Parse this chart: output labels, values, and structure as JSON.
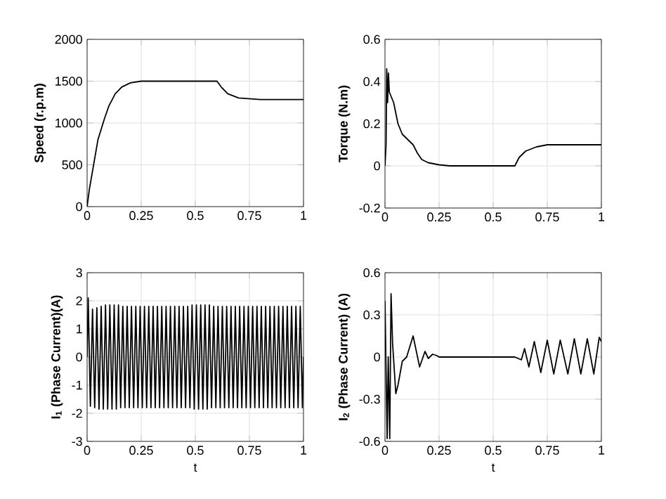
{
  "chart_data": [
    {
      "type": "line",
      "ylabel": "Speed (r.p.m)",
      "color": "#000000",
      "grid": true,
      "xlim": [
        0,
        1
      ],
      "xticks": [
        0,
        0.25,
        0.5,
        0.75,
        1
      ],
      "ylim": [
        0,
        2000
      ],
      "yticks": [
        0,
        500,
        1000,
        1500,
        2000
      ],
      "x": [
        0,
        0.01,
        0.03,
        0.05,
        0.08,
        0.1,
        0.13,
        0.16,
        0.2,
        0.25,
        0.6,
        0.62,
        0.65,
        0.7,
        0.75,
        0.8,
        1
      ],
      "values": [
        0,
        200,
        500,
        800,
        1050,
        1200,
        1350,
        1430,
        1480,
        1500,
        1500,
        1430,
        1350,
        1300,
        1290,
        1280,
        1280
      ]
    },
    {
      "type": "line",
      "ylabel": "Torque (N.m)",
      "color": "#000000",
      "grid": true,
      "xlim": [
        0,
        1
      ],
      "xticks": [
        0,
        0.25,
        0.5,
        0.75,
        1
      ],
      "ylim": [
        -0.2,
        0.6
      ],
      "yticks": [
        -0.2,
        0,
        0.2,
        0.4,
        0.6
      ],
      "x": [
        0,
        0.005,
        0.008,
        0.012,
        0.016,
        0.02,
        0.04,
        0.06,
        0.08,
        0.1,
        0.13,
        0.15,
        0.17,
        0.2,
        0.25,
        0.3,
        0.6,
        0.62,
        0.65,
        0.7,
        0.75,
        0.85,
        1
      ],
      "values": [
        0,
        0.1,
        0.46,
        0.3,
        0.44,
        0.35,
        0.3,
        0.2,
        0.15,
        0.13,
        0.1,
        0.06,
        0.03,
        0.015,
        0.005,
        0,
        0,
        0.04,
        0.07,
        0.09,
        0.1,
        0.1,
        0.1
      ]
    },
    {
      "type": "line",
      "xlabel": "t",
      "ylabel": "I$_{1}$ (Phase Current)(A)",
      "color": "#000000",
      "grid": true,
      "xlim": [
        0,
        1
      ],
      "xticks": [
        0,
        0.25,
        0.5,
        0.75,
        1
      ],
      "ylim": [
        -3,
        3
      ],
      "yticks": [
        -3,
        -2,
        -1,
        0,
        1,
        2,
        3
      ],
      "x": [
        0,
        0.005,
        0.015,
        0.025,
        0.035,
        0.045,
        0.055,
        0.065,
        0.075,
        0.085,
        0.095,
        0.105,
        0.115,
        0.125,
        0.135,
        0.145,
        0.155,
        0.165,
        0.175,
        0.185,
        0.195,
        0.205,
        0.215,
        0.225,
        0.235,
        0.245,
        0.255,
        0.265,
        0.275,
        0.285,
        0.295,
        0.305,
        0.315,
        0.325,
        0.335,
        0.345,
        0.355,
        0.365,
        0.375,
        0.385,
        0.395,
        0.405,
        0.415,
        0.425,
        0.435,
        0.445,
        0.455,
        0.465,
        0.475,
        0.485,
        0.495,
        0.505,
        0.515,
        0.525,
        0.535,
        0.545,
        0.555,
        0.565,
        0.575,
        0.585,
        0.595,
        0.605,
        0.615,
        0.625,
        0.635,
        0.645,
        0.655,
        0.665,
        0.675,
        0.685,
        0.695,
        0.705,
        0.715,
        0.725,
        0.735,
        0.745,
        0.755,
        0.765,
        0.775,
        0.785,
        0.795,
        0.805,
        0.815,
        0.825,
        0.835,
        0.845,
        0.855,
        0.865,
        0.875,
        0.885,
        0.895,
        0.905,
        0.915,
        0.925,
        0.935,
        0.945,
        0.955,
        0.965,
        0.975,
        0.985,
        0.995,
        1
      ],
      "values": [
        0,
        2.1,
        -1.75,
        1.7,
        -1.8,
        1.75,
        -1.85,
        1.8,
        -1.85,
        1.85,
        -1.85,
        1.85,
        -1.85,
        1.85,
        -1.85,
        1.85,
        -1.8,
        1.8,
        -1.8,
        1.8,
        -1.8,
        1.8,
        -1.8,
        1.8,
        -1.8,
        1.8,
        -1.8,
        1.8,
        -1.8,
        1.8,
        -1.8,
        1.8,
        -1.8,
        1.8,
        -1.8,
        1.8,
        -1.8,
        1.8,
        -1.8,
        1.8,
        -1.8,
        1.8,
        -1.8,
        1.8,
        -1.8,
        1.8,
        -1.8,
        1.8,
        -1.8,
        1.85,
        -1.85,
        1.85,
        -1.85,
        1.85,
        -1.85,
        1.85,
        -1.85,
        1.85,
        -1.8,
        1.8,
        -1.8,
        1.8,
        -1.8,
        1.8,
        -1.8,
        1.8,
        -1.8,
        1.8,
        -1.8,
        1.8,
        -1.8,
        1.8,
        -1.8,
        1.8,
        -1.8,
        1.8,
        -1.8,
        1.8,
        -1.8,
        1.8,
        -1.8,
        1.8,
        -1.8,
        1.8,
        -1.8,
        1.8,
        -1.8,
        1.8,
        -1.8,
        1.8,
        -1.8,
        1.8,
        -1.8,
        1.8,
        -1.8,
        1.8,
        -1.8,
        1.8,
        -1.8,
        1.8,
        -1.8,
        0
      ]
    },
    {
      "type": "line",
      "xlabel": "t",
      "ylabel": "I$_{2}$ (Phase Current) (A)",
      "color": "#000000",
      "grid": true,
      "xlim": [
        0,
        1
      ],
      "xticks": [
        0,
        0.25,
        0.5,
        0.75,
        1
      ],
      "ylim": [
        -0.6,
        0.6
      ],
      "yticks": [
        -0.6,
        -0.3,
        0,
        0.3,
        0.6
      ],
      "x": [
        0,
        0.005,
        0.01,
        0.015,
        0.022,
        0.028,
        0.035,
        0.05,
        0.06,
        0.08,
        0.1,
        0.13,
        0.16,
        0.185,
        0.2,
        0.22,
        0.24,
        0.25,
        0.6,
        0.63,
        0.645,
        0.665,
        0.69,
        0.72,
        0.75,
        0.78,
        0.81,
        0.845,
        0.875,
        0.905,
        0.935,
        0.965,
        0.99,
        1
      ],
      "values": [
        0.4,
        -0.1,
        -0.58,
        0,
        -0.58,
        0.45,
        0.1,
        -0.26,
        -0.2,
        -0.03,
        0,
        0.15,
        -0.07,
        0.04,
        -0.01,
        0.02,
        0.01,
        0,
        0,
        -0.02,
        0.06,
        -0.07,
        0.11,
        -0.11,
        0.12,
        -0.12,
        0.12,
        -0.12,
        0.13,
        -0.12,
        0.13,
        -0.12,
        0.14,
        0.11
      ]
    }
  ]
}
